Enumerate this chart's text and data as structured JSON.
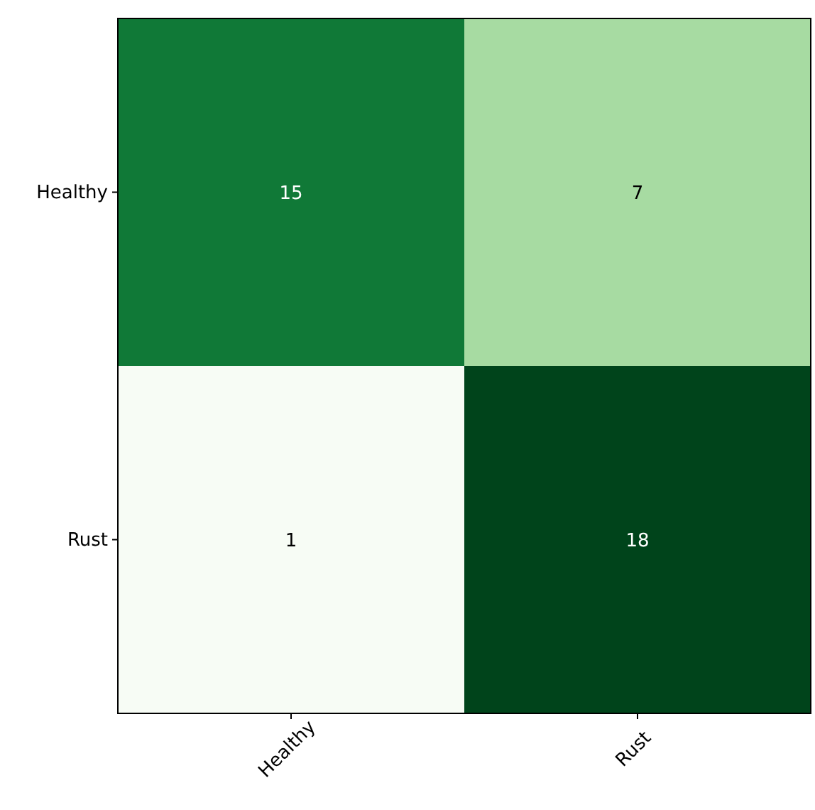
{
  "chart_data": {
    "type": "heatmap",
    "categories": [
      "Healthy",
      "Rust"
    ],
    "y_categories": [
      "Healthy",
      "Rust"
    ],
    "cells": [
      [
        15,
        7
      ],
      [
        1,
        18
      ]
    ],
    "data_labels": true
  }
}
